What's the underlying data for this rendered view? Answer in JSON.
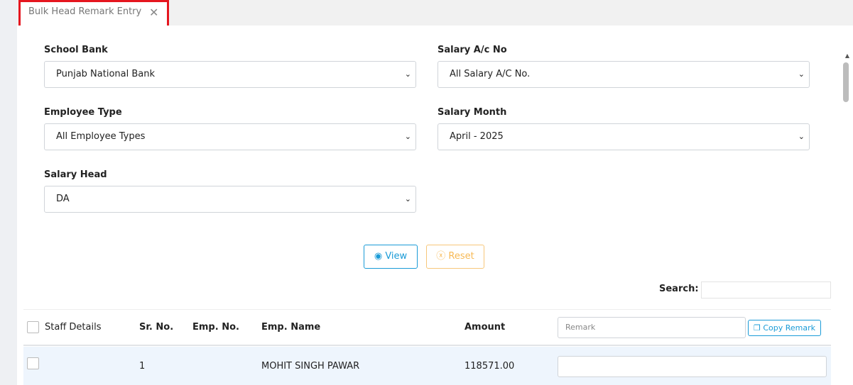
{
  "tab": {
    "title": "Bulk Head Remark Entry"
  },
  "form": {
    "school_bank": {
      "label": "School Bank",
      "value": "Punjab National Bank"
    },
    "salary_ac": {
      "label": "Salary A/c No",
      "value": "All Salary A/C No."
    },
    "employee_type": {
      "label": "Employee Type",
      "value": "All Employee Types"
    },
    "salary_month": {
      "label": "Salary Month",
      "value": "April - 2025"
    },
    "salary_head": {
      "label": "Salary Head",
      "value": "DA"
    }
  },
  "buttons": {
    "view": "View",
    "reset": "Reset",
    "copy_remark": "Copy Remark"
  },
  "search": {
    "label": "Search:",
    "value": ""
  },
  "table": {
    "headers": [
      "Staff Details",
      "Sr. No.",
      "Emp. No.",
      "Emp. Name",
      "Amount"
    ],
    "remark_placeholder": "Remark",
    "rows": [
      {
        "sr": "1",
        "emp_no": "",
        "name": "MOHIT SINGH PAWAR",
        "amount": "118571.00",
        "remark": ""
      }
    ]
  },
  "colors": {
    "highlight": "#e5161f",
    "view": "#1a9bd7",
    "reset": "#f7b955",
    "row_bg": "#eef5fd"
  }
}
